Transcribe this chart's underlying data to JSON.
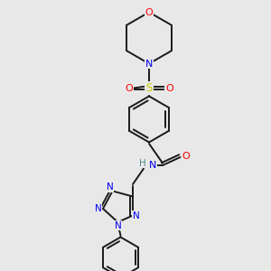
{
  "bg_color": "#e8e8e8",
  "bond_color": "#1a1a1a",
  "atom_colors": {
    "O": "#ff0000",
    "N": "#0000ee",
    "S": "#cccc00",
    "H": "#4a9090"
  },
  "figsize": [
    3.0,
    3.0
  ],
  "dpi": 100,
  "xlim": [
    0,
    10
  ],
  "ylim": [
    0,
    10
  ]
}
